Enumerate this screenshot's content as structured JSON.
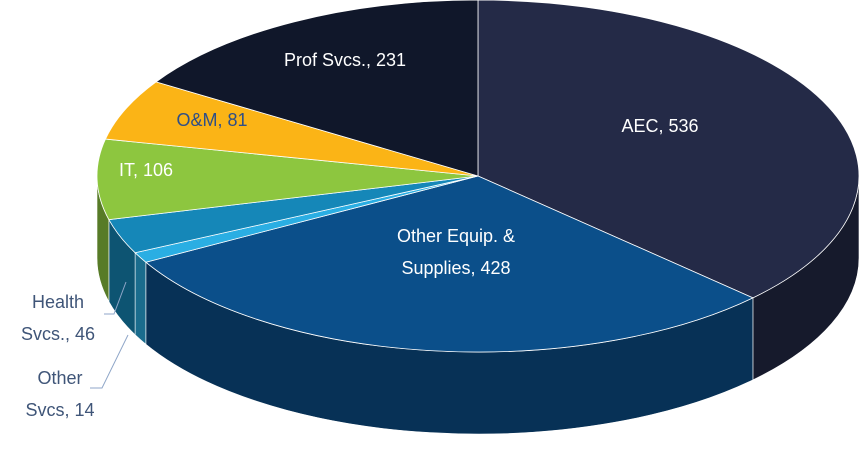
{
  "chart_data": {
    "type": "pie",
    "categories": [
      "AEC",
      "Other Equip. & Supplies",
      "Other Svcs",
      "Health Svcs.",
      "IT",
      "O&M",
      "Prof Svcs."
    ],
    "values": [
      536,
      428,
      14,
      46,
      106,
      81,
      231
    ],
    "value_labels": [
      "AEC, 536",
      "Other Equip. &\nSupplies, 428",
      "Other\nSvcs, 14",
      "Health\nSvcs., 46",
      "IT, 106",
      "O&M, 81",
      "Prof Svcs., 231"
    ],
    "colors": [
      "#242a47",
      "#0b4f8a",
      "#2aaee3",
      "#1587b8",
      "#8dc63f",
      "#fbb416",
      "#10172a"
    ]
  }
}
